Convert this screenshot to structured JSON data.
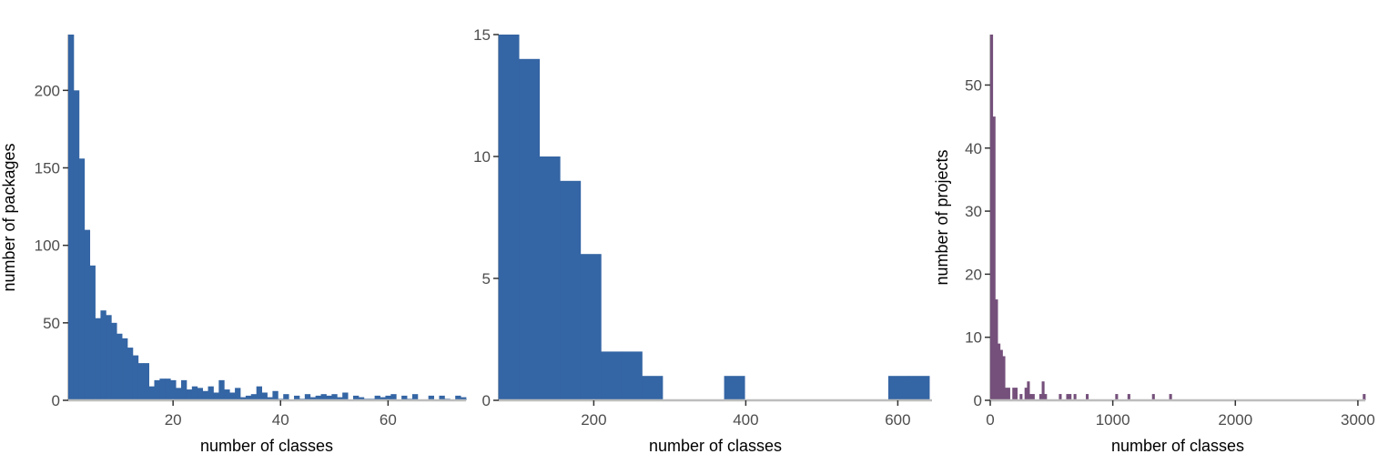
{
  "chart_data": [
    {
      "type": "bar",
      "title": "",
      "xlabel": "number of classes",
      "ylabel": "number of packages",
      "xlim": [
        0.5,
        74.5
      ],
      "ylim": [
        0,
        236
      ],
      "grid": false,
      "bar_color": "#3465a4",
      "xticks": [
        20,
        40,
        60
      ],
      "yticks": [
        0,
        50,
        100,
        150,
        200
      ],
      "bin_width": 1,
      "x": [
        1,
        2,
        3,
        4,
        5,
        6,
        7,
        8,
        9,
        10,
        11,
        12,
        13,
        14,
        15,
        16,
        17,
        18,
        19,
        20,
        21,
        22,
        23,
        24,
        25,
        26,
        27,
        28,
        29,
        30,
        31,
        32,
        33,
        34,
        35,
        36,
        37,
        38,
        39,
        40,
        41,
        42,
        43,
        44,
        45,
        46,
        47,
        48,
        49,
        50,
        51,
        52,
        53,
        54,
        55,
        56,
        57,
        58,
        59,
        60,
        61,
        62,
        63,
        64,
        65,
        66,
        67,
        68,
        69,
        70,
        71,
        72,
        73,
        74
      ],
      "values": [
        236,
        200,
        156,
        110,
        87,
        53,
        58,
        55,
        50,
        43,
        40,
        34,
        29,
        24,
        24,
        9,
        13,
        14,
        14,
        13,
        8,
        13,
        7,
        9,
        8,
        6,
        9,
        5,
        13,
        7,
        5,
        8,
        2,
        3,
        4,
        9,
        5,
        2,
        6,
        1,
        4,
        0,
        3,
        1,
        4,
        2,
        3,
        4,
        3,
        4,
        2,
        5,
        0,
        3,
        2,
        1,
        1,
        3,
        2,
        3,
        4,
        0,
        3,
        1,
        4,
        0,
        0,
        3,
        0,
        3,
        1,
        0,
        3,
        2
      ]
    },
    {
      "type": "bar",
      "title": "",
      "xlabel": "number of classes",
      "ylabel": "",
      "xlim": [
        75,
        645
      ],
      "ylim": [
        0,
        15
      ],
      "grid": false,
      "bar_color": "#3465a4",
      "xticks": [
        200,
        400,
        600
      ],
      "yticks": [
        0,
        5,
        10,
        15
      ],
      "bin_width": 27,
      "x": [
        88,
        115,
        142,
        169,
        196,
        223,
        250,
        277,
        304,
        331,
        358,
        385,
        412,
        439,
        466,
        493,
        520,
        547,
        574,
        601,
        628
      ],
      "values": [
        15,
        14,
        10,
        9,
        6,
        2,
        2,
        1,
        0,
        0,
        0,
        1,
        0,
        0,
        0,
        0,
        0,
        0,
        0,
        1,
        1
      ]
    },
    {
      "type": "bar",
      "title": "",
      "xlabel": "number of classes",
      "ylabel": "number of projects",
      "xlim": [
        0,
        3060
      ],
      "ylim": [
        0,
        58
      ],
      "grid": false,
      "bar_color": "#75507b",
      "xticks": [
        0,
        1000,
        2000,
        3000
      ],
      "yticks": [
        0,
        10,
        20,
        30,
        40,
        50
      ],
      "bin_width": 20,
      "x": [
        10,
        30,
        50,
        70,
        90,
        110,
        130,
        150,
        170,
        190,
        210,
        230,
        250,
        270,
        290,
        310,
        330,
        350,
        370,
        390,
        410,
        430,
        450,
        570,
        630,
        650,
        690,
        790,
        1030,
        1130,
        1330,
        1470,
        3050
      ],
      "values": [
        58,
        45,
        16,
        9,
        8,
        7,
        2,
        2,
        0,
        2,
        2,
        0,
        1,
        0,
        2,
        3,
        1,
        1,
        0,
        0,
        1,
        3,
        1,
        1,
        1,
        1,
        1,
        1,
        1,
        1,
        1,
        1,
        1
      ]
    }
  ]
}
